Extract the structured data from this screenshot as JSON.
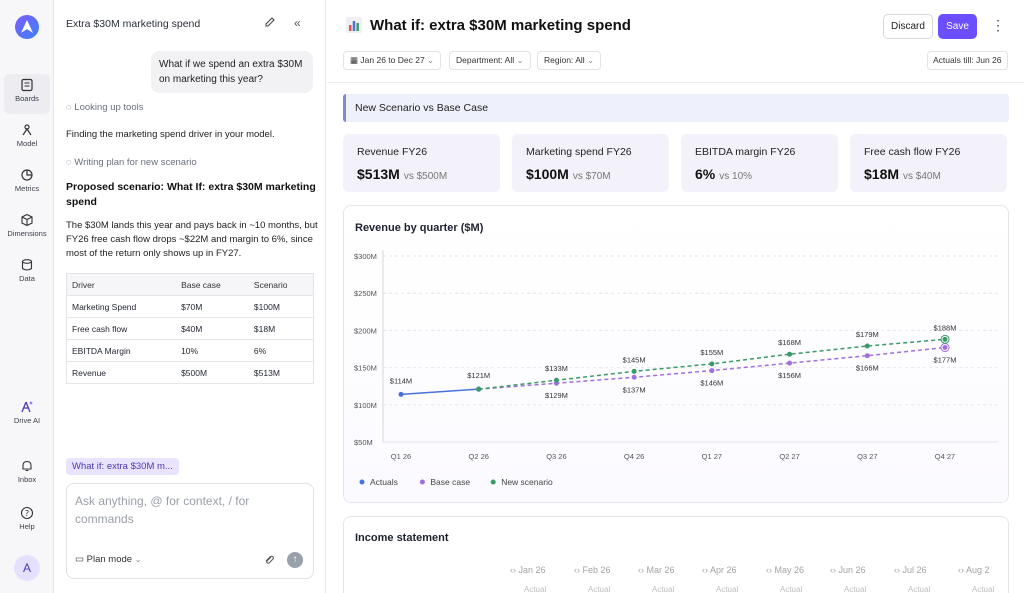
{
  "rail": {
    "items": [
      {
        "label": "Boards"
      },
      {
        "label": "Model"
      },
      {
        "label": "Metrics"
      },
      {
        "label": "Dimensions"
      },
      {
        "label": "Data"
      },
      {
        "label": "Drive AI"
      },
      {
        "label": "Inbox"
      },
      {
        "label": "Help"
      }
    ],
    "avatar": "A"
  },
  "chat": {
    "title": "Extra $30M marketing spend",
    "user_message": "What if we spend an extra $30M on marketing this year?",
    "step1": "Looking up tools",
    "para1": "Finding the marketing spend driver in your model.",
    "step2": "Writing plan for new scenario",
    "proposal_heading": "Proposed scenario: What If: extra $30M marketing spend",
    "proposal_text": "The $30M lands this year and pays back in ~10 months, but FY26 free cash flow drops ~$22M and margin to 6%, since most of the return only shows up in FY27.",
    "table": {
      "headers": [
        "Driver",
        "Base case",
        "Scenario"
      ],
      "rows": [
        [
          "Marketing Spend",
          "$70M",
          "$100M"
        ],
        [
          "Free cash flow",
          "$40M",
          "$18M"
        ],
        [
          "EBITDA Margin",
          "10%",
          "6%"
        ],
        [
          "Revenue",
          "$500M",
          "$513M"
        ]
      ]
    },
    "chip": "What if: extra $30M m...",
    "composer_placeholder": "Ask anything, @ for context, / for commands",
    "plan_mode": "Plan mode"
  },
  "header": {
    "title": "What if: extra $30M marketing spend",
    "discard": "Discard",
    "save": "Save",
    "filters": [
      "Jan 26 to Dec 27",
      "Department: All",
      "Region: All"
    ],
    "actuals": "Actuals till: Jun 26"
  },
  "section": "New Scenario vs Base Case",
  "kpis": [
    {
      "label": "Revenue FY26",
      "value": "$513M",
      "compare": "vs $500M"
    },
    {
      "label": "Marketing spend FY26",
      "value": "$100M",
      "compare": "vs $70M"
    },
    {
      "label": "EBITDA margin FY26",
      "value": "6%",
      "compare": "vs 10%"
    },
    {
      "label": "Free cash flow FY26",
      "value": "$18M",
      "compare": "vs $40M"
    }
  ],
  "chart_data": {
    "type": "line",
    "title": "Revenue by quarter ($M)",
    "categories": [
      "Q1 26",
      "Q2 26",
      "Q3 26",
      "Q4 26",
      "Q1 27",
      "Q2 27",
      "Q3 27",
      "Q4 27"
    ],
    "yticks": [
      "$50M",
      "$100M",
      "$150M",
      "$200M",
      "$250M",
      "$300M"
    ],
    "ylim": [
      50,
      300
    ],
    "series": [
      {
        "name": "Actuals",
        "color": "#4a72d9",
        "values": [
          114,
          121,
          null,
          null,
          null,
          null,
          null,
          null
        ],
        "labels": [
          "$114M",
          "$121M",
          "",
          "",
          "",
          "",
          "",
          ""
        ]
      },
      {
        "name": "Base case",
        "color": "#a070e0",
        "values": [
          null,
          121,
          129,
          137,
          146,
          156,
          166,
          177
        ],
        "labels": [
          "",
          "",
          "$129M",
          "$137M",
          "$146M",
          "$156M",
          "$166M",
          "$177M"
        ]
      },
      {
        "name": "New scenario",
        "color": "#3a9a6a",
        "values": [
          null,
          121,
          133,
          145,
          155,
          168,
          179,
          188
        ],
        "labels": [
          "",
          "",
          "$133M",
          "$145M",
          "$155M",
          "$168M",
          "$179M",
          "$188M"
        ]
      }
    ],
    "legend": "bottom-left",
    "grid": true
  },
  "income": {
    "title": "Income statement",
    "months": [
      "Jan 26",
      "Feb 26",
      "Mar 26",
      "Apr 26",
      "May 26",
      "Jun 26",
      "Jul 26",
      "Aug 2"
    ],
    "sub": "Actual"
  }
}
